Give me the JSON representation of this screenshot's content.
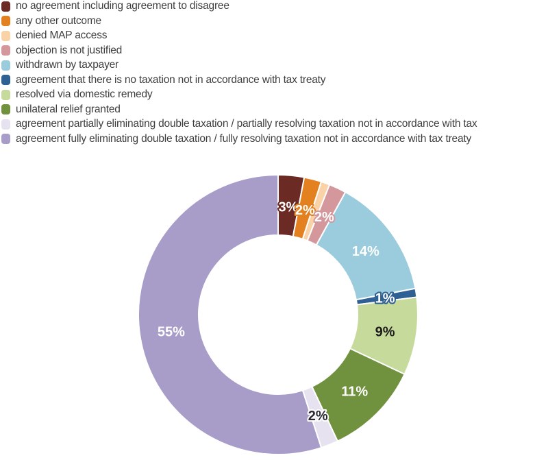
{
  "chart_data": {
    "type": "pie",
    "subtype": "donut",
    "unit": "percent",
    "start_angle_deg": 0,
    "direction": "clockwise",
    "legend_position": "top-left",
    "grid": false,
    "total": 100,
    "slices": [
      {
        "label": "no agreement including agreement to disagree",
        "value": 3,
        "pct_label": "3%",
        "color": "#6b2a24",
        "pct_fill": "#ffffff",
        "pct_stroke": "#6b2a24"
      },
      {
        "label": "any other outcome",
        "value": 2,
        "pct_label": "2%",
        "color": "#e3801f",
        "pct_fill": "#ffffff",
        "pct_stroke": "#e3801f"
      },
      {
        "label": "denied MAP access",
        "value": 1,
        "pct_label": "",
        "color": "#fad2a7",
        "pct_fill": "",
        "pct_stroke": ""
      },
      {
        "label": "objection is not justified",
        "value": 2,
        "pct_label": "2%",
        "color": "#d3979c",
        "pct_fill": "#ffffff",
        "pct_stroke": "#d3979c"
      },
      {
        "label": "withdrawn by taxpayer",
        "value": 14,
        "pct_label": "14%",
        "color": "#9accdd",
        "pct_fill": "#ffffff",
        "pct_stroke": ""
      },
      {
        "label": "agreement that there is no taxation not in accordance with tax treaty",
        "value": 1,
        "pct_label": "1%",
        "color": "#2e6093",
        "pct_fill": "#ffffff",
        "pct_stroke": "#2e6093"
      },
      {
        "label": "resolved via domestic remedy",
        "value": 9,
        "pct_label": "9%",
        "color": "#c6da9c",
        "pct_fill": "#1c1c1c",
        "pct_stroke": ""
      },
      {
        "label": "unilateral relief granted",
        "value": 11,
        "pct_label": "11%",
        "color": "#70923f",
        "pct_fill": "#ffffff",
        "pct_stroke": ""
      },
      {
        "label": "agreement partially eliminating double taxation / partially resolving taxation not in accordance with tax",
        "value": 2,
        "pct_label": "2%",
        "color": "#e7e2f0",
        "pct_fill": "#2a2a33",
        "pct_stroke": "#ffffff"
      },
      {
        "label": "agreement fully eliminating double taxation / fully resolving taxation not in accordance with tax treaty",
        "value": 55,
        "pct_label": "55%",
        "color": "#a89cc9",
        "pct_fill": "#ffffff",
        "pct_stroke": ""
      }
    ]
  }
}
